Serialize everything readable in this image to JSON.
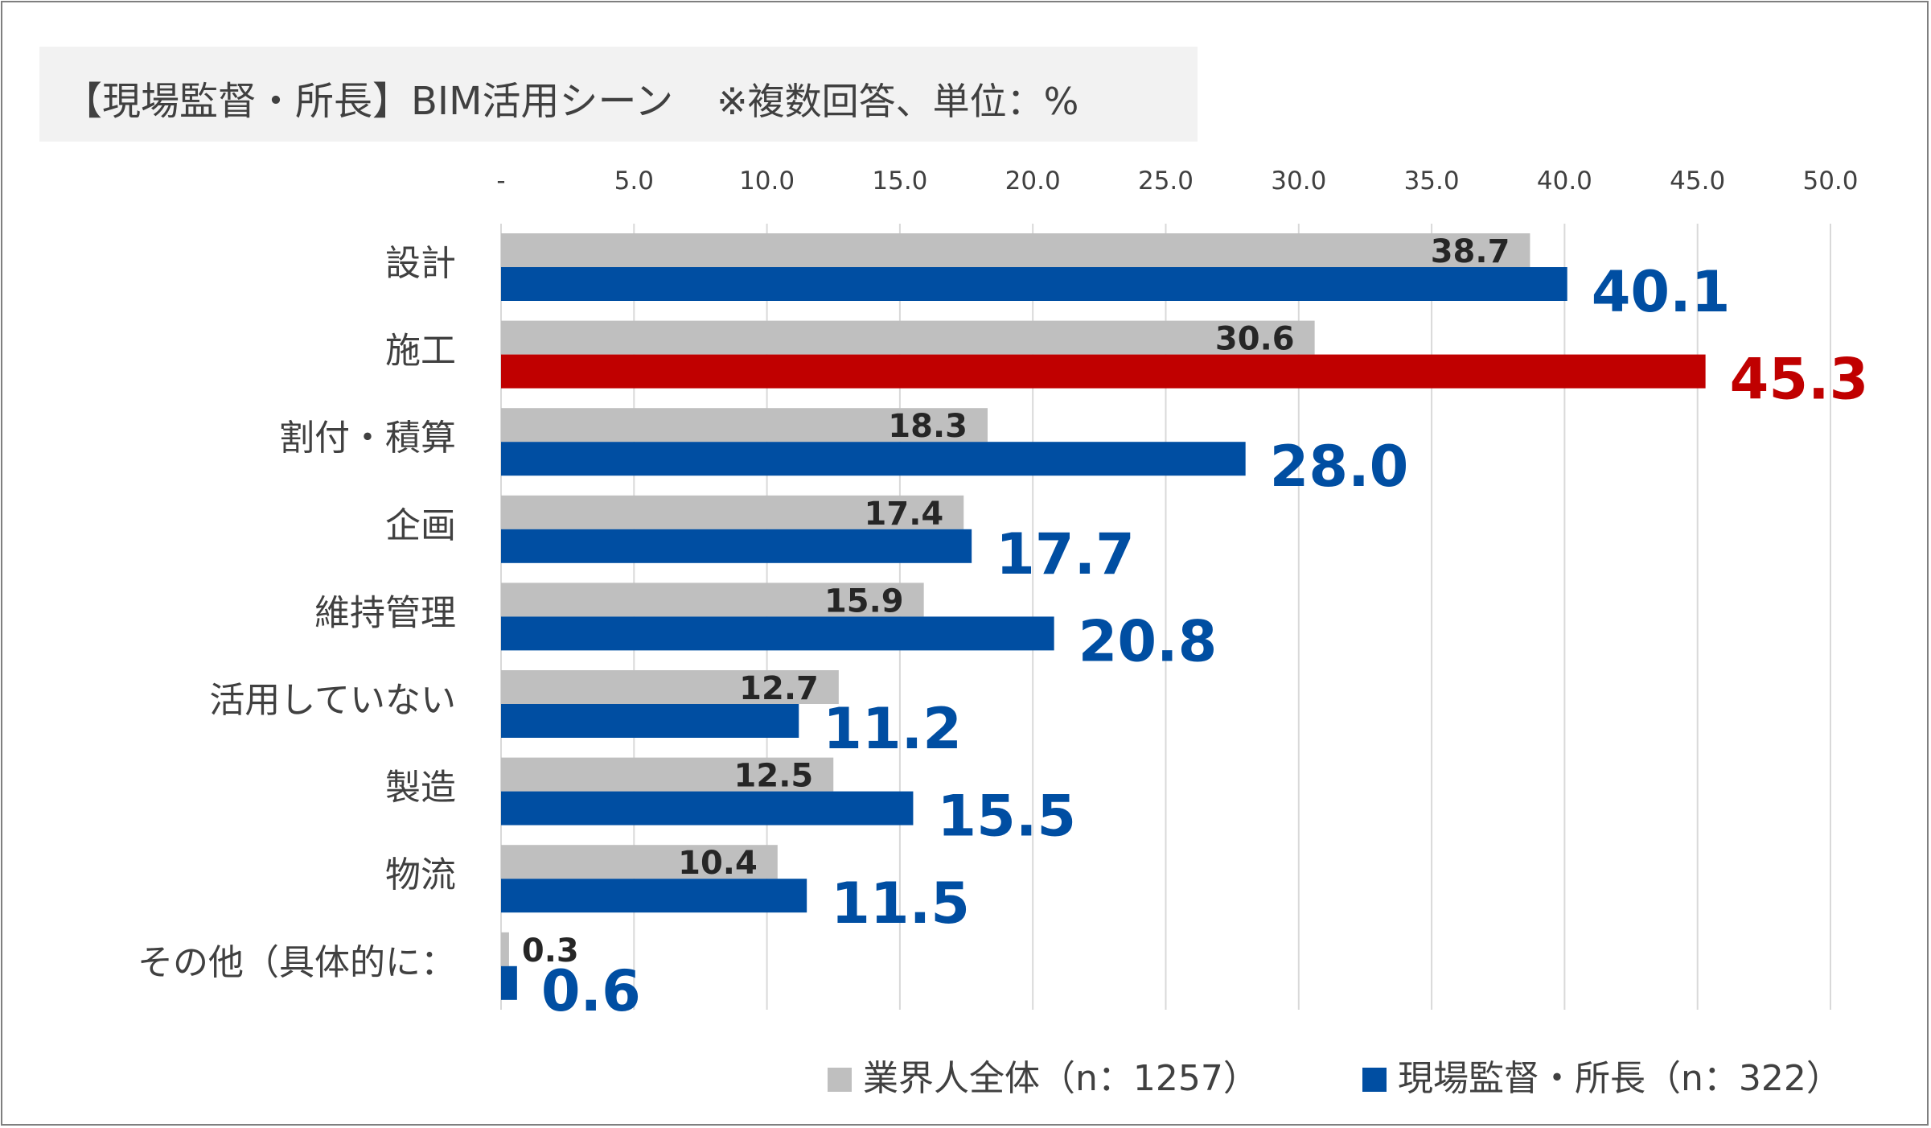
{
  "title": "【現場監督・所長】BIM活用シーン",
  "note": "※複数回答、単位：%",
  "chart_data": {
    "type": "bar",
    "orientation": "horizontal",
    "categories": [
      "設計",
      "施工",
      "割付・積算",
      "企画",
      "維持管理",
      "活用していない",
      "製造",
      "物流",
      "その他（具体的に："
    ],
    "series": [
      {
        "name": "業界人全体（n：1257）",
        "color": "#bfbfbf",
        "values": [
          38.7,
          30.6,
          18.3,
          17.4,
          15.9,
          12.7,
          12.5,
          10.4,
          0.3
        ],
        "labels": [
          "38.7",
          "30.6",
          "18.3",
          "17.4",
          "15.9",
          "12.7",
          "12.5",
          "10.4",
          "0.3"
        ]
      },
      {
        "name": "現場監督・所長（n：322）",
        "color": "#004ea2",
        "highlight_color": "#c00000",
        "highlight_index": 1,
        "values": [
          40.1,
          45.3,
          28.0,
          17.7,
          20.8,
          11.2,
          15.5,
          11.5,
          0.6
        ],
        "labels": [
          "40.1",
          "45.3",
          "28.0",
          "17.7",
          "20.8",
          "11.2",
          "15.5",
          "11.5",
          "0.6"
        ]
      }
    ],
    "xlim": [
      0,
      50
    ],
    "ticks": [
      0,
      5,
      10,
      15,
      20,
      25,
      30,
      35,
      40,
      45,
      50
    ],
    "tick_labels": [
      "-",
      "5.0",
      "10.0",
      "15.0",
      "20.0",
      "25.0",
      "30.0",
      "35.0",
      "40.0",
      "45.0",
      "50.0"
    ],
    "axis_position": "top",
    "grid": true,
    "legend_position": "bottom-right"
  }
}
